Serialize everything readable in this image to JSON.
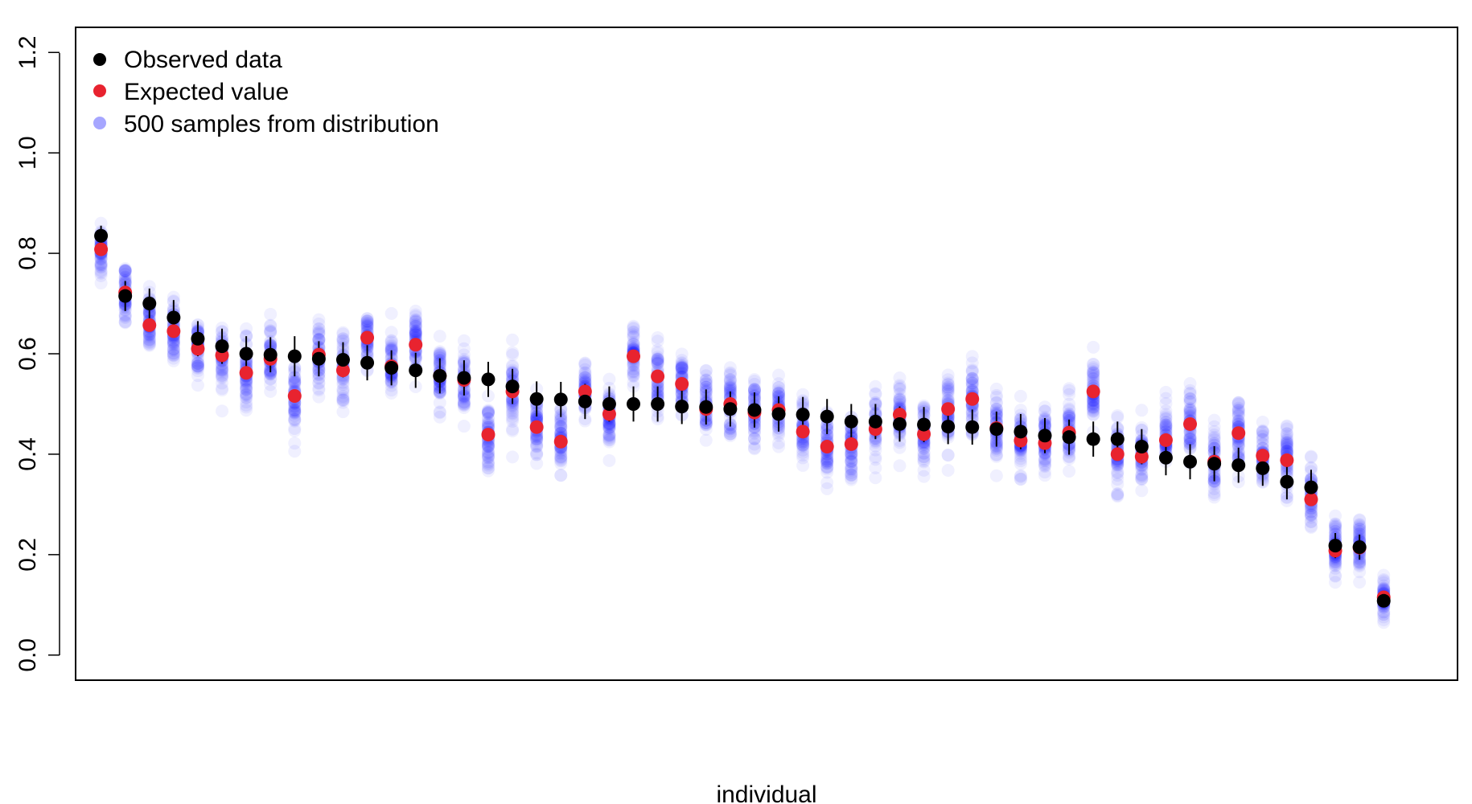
{
  "chart_data": {
    "type": "scatter",
    "title": "",
    "xlabel": "individual",
    "ylabel": "",
    "ylim": [
      -0.05,
      1.25
    ],
    "xlim": [
      -0.05,
      57.05
    ],
    "yticks": [
      0.0,
      0.2,
      0.4,
      0.6,
      0.8,
      1.0,
      1.2
    ],
    "ytick_labels": [
      "0.0",
      "0.2",
      "0.4",
      "0.6",
      "0.8",
      "1.0",
      "1.2"
    ],
    "grid": false,
    "legend_position": "top-left",
    "legend": [
      {
        "label": "Observed data",
        "color": "#000000",
        "opacity": 1.0
      },
      {
        "label": "Expected value",
        "color": "#e8232f",
        "opacity": 1.0
      },
      {
        "label": "500 samples from distribution",
        "color": "#0000ff",
        "opacity": 0.35
      }
    ],
    "colors": {
      "observed": "#000000",
      "expected": "#e8232f",
      "samples": "#0000ff"
    },
    "samples_per_individual": 500,
    "series": [
      {
        "name": "Observed data",
        "values": [
          0.835,
          0.715,
          0.7,
          0.672,
          0.63,
          0.615,
          0.6,
          0.598,
          0.595,
          0.59,
          0.588,
          0.582,
          0.572,
          0.567,
          0.556,
          0.552,
          0.549,
          0.535,
          0.51,
          0.509,
          0.505,
          0.5,
          0.5,
          0.5,
          0.495,
          0.494,
          0.49,
          0.488,
          0.48,
          0.479,
          0.475,
          0.465,
          0.465,
          0.46,
          0.459,
          0.455,
          0.454,
          0.45,
          0.445,
          0.437,
          0.434,
          0.43,
          0.43,
          0.415,
          0.393,
          0.385,
          0.381,
          0.378,
          0.372,
          0.345,
          0.334,
          0.218,
          0.215,
          0.108
        ]
      },
      {
        "name": "Expected value",
        "values": [
          0.808,
          0.722,
          0.657,
          0.645,
          0.61,
          0.597,
          0.562,
          0.59,
          0.516,
          0.598,
          0.567,
          0.632,
          0.575,
          0.618,
          0.556,
          0.548,
          0.439,
          0.525,
          0.454,
          0.425,
          0.525,
          0.48,
          0.595,
          0.555,
          0.54,
          0.49,
          0.5,
          0.483,
          0.488,
          0.445,
          0.415,
          0.42,
          0.45,
          0.479,
          0.44,
          0.49,
          0.51,
          0.452,
          0.427,
          0.422,
          0.443,
          0.525,
          0.4,
          0.395,
          0.428,
          0.46,
          0.385,
          0.442,
          0.397,
          0.388,
          0.31,
          0.208,
          0.214,
          0.115
        ]
      }
    ],
    "error_half_width": [
      0.02,
      0.03,
      0.03,
      0.035,
      0.035,
      0.035,
      0.035,
      0.035,
      0.04,
      0.035,
      0.035,
      0.035,
      0.035,
      0.035,
      0.035,
      0.035,
      0.035,
      0.035,
      0.035,
      0.035,
      0.035,
      0.035,
      0.035,
      0.035,
      0.035,
      0.035,
      0.035,
      0.035,
      0.035,
      0.035,
      0.035,
      0.035,
      0.035,
      0.035,
      0.035,
      0.035,
      0.035,
      0.035,
      0.035,
      0.035,
      0.035,
      0.035,
      0.035,
      0.035,
      0.035,
      0.035,
      0.035,
      0.035,
      0.035,
      0.035,
      0.035,
      0.025,
      0.025,
      0.01
    ]
  }
}
